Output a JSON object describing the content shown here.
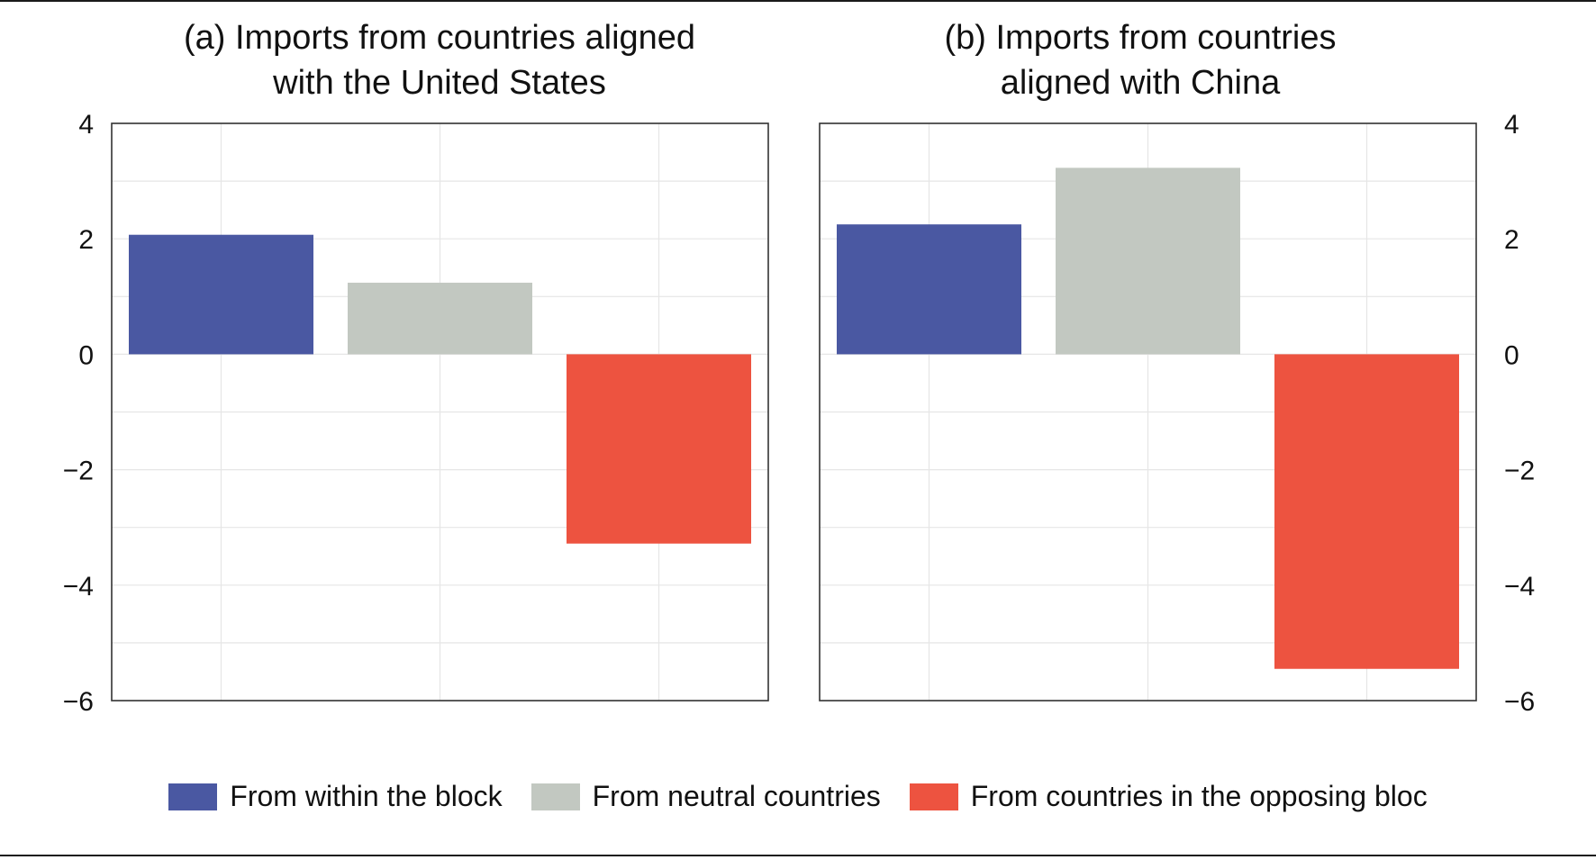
{
  "chart_data": [
    {
      "type": "bar",
      "title": "(a) Imports from countries aligned with the United States",
      "title_lines": [
        "(a) Imports from countries aligned",
        "with the United States"
      ],
      "y_axis_side": "left",
      "categories": [
        "From within the block",
        "From neutral countries",
        "From countries in the opposing bloc"
      ],
      "values": [
        2.07,
        1.24,
        -3.28
      ],
      "colors": [
        "#4a58a2",
        "#c2c8c1",
        "#ed5340"
      ],
      "ylim": [
        -6,
        4
      ],
      "yticks": [
        4,
        2,
        0,
        -2,
        -4,
        -6
      ],
      "ytick_labels": [
        "4",
        "2",
        "0",
        "−2",
        "−4",
        "−6"
      ],
      "grid": true
    },
    {
      "type": "bar",
      "title": "(b) Imports from countries aligned with China",
      "title_lines": [
        "(b) Imports from countries",
        "aligned with China"
      ],
      "y_axis_side": "right",
      "categories": [
        "From within the block",
        "From neutral countries",
        "From countries in the opposing bloc"
      ],
      "values": [
        2.25,
        3.23,
        -5.45
      ],
      "colors": [
        "#4a58a2",
        "#c2c8c1",
        "#ed5340"
      ],
      "ylim": [
        -6,
        4
      ],
      "yticks": [
        4,
        2,
        0,
        -2,
        -4,
        -6
      ],
      "ytick_labels": [
        "4",
        "2",
        "0",
        "−2",
        "−4",
        "−6"
      ],
      "grid": true
    }
  ],
  "legend": {
    "placement": "bottom-center",
    "items": [
      {
        "label": "From within the block",
        "color": "#4a58a2"
      },
      {
        "label": "From neutral countries",
        "color": "#c2c8c1"
      },
      {
        "label": "From countries in the opposing bloc",
        "color": "#ed5340"
      }
    ]
  }
}
